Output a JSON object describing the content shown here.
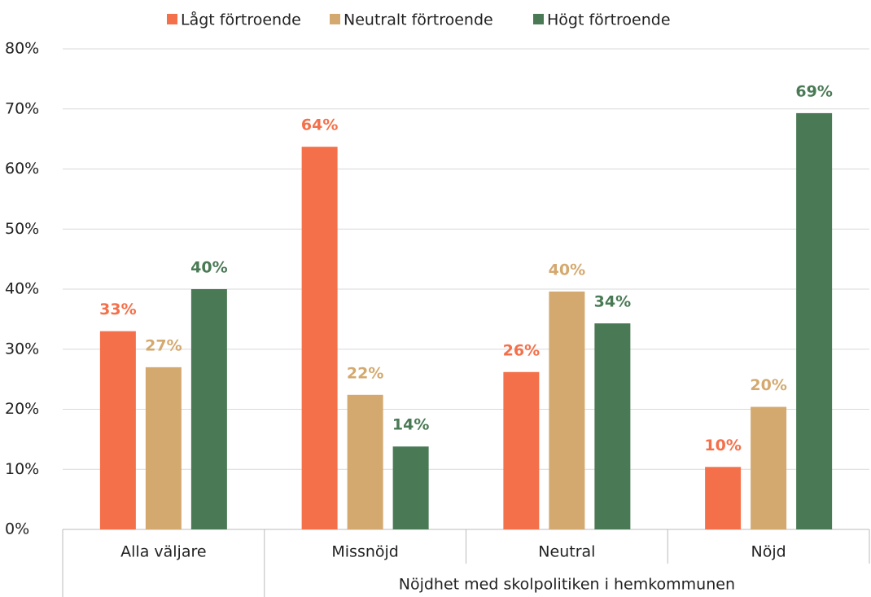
{
  "chart_data": {
    "type": "bar",
    "categories": [
      "Alla väljare",
      "Missnöjd",
      "Neutral",
      "Nöjd"
    ],
    "group_label": "Nöjdhet med skolpolitiken i hemkommunen",
    "series": [
      {
        "name": "Lågt förtroende",
        "color": "#f4704a",
        "values": [
          33,
          63.7,
          26.2,
          10.4
        ],
        "value_labels": [
          "33%",
          "64%",
          "26%",
          "10%"
        ]
      },
      {
        "name": "Neutralt förtroende",
        "color": "#d4a96f",
        "values": [
          27,
          22.4,
          39.6,
          20.4
        ],
        "value_labels": [
          "27%",
          "22%",
          "40%",
          "20%"
        ]
      },
      {
        "name": "Högt förtroende",
        "color": "#4a7a55",
        "values": [
          40,
          13.8,
          34.3,
          69.3
        ],
        "value_labels": [
          "40%",
          "14%",
          "34%",
          "69%"
        ]
      }
    ],
    "ylim": [
      0,
      80
    ],
    "yticks": [
      {
        "value": 0,
        "label": "0%"
      },
      {
        "value": 10,
        "label": "10%"
      },
      {
        "value": 20,
        "label": "20%"
      },
      {
        "value": 30,
        "label": "30%"
      },
      {
        "value": 40,
        "label": "40%"
      },
      {
        "value": 50,
        "label": "50%"
      },
      {
        "value": 60,
        "label": "60%"
      },
      {
        "value": 70,
        "label": "70%"
      },
      {
        "value": 80,
        "label": "80%"
      }
    ],
    "grid": true,
    "legend": "top"
  }
}
